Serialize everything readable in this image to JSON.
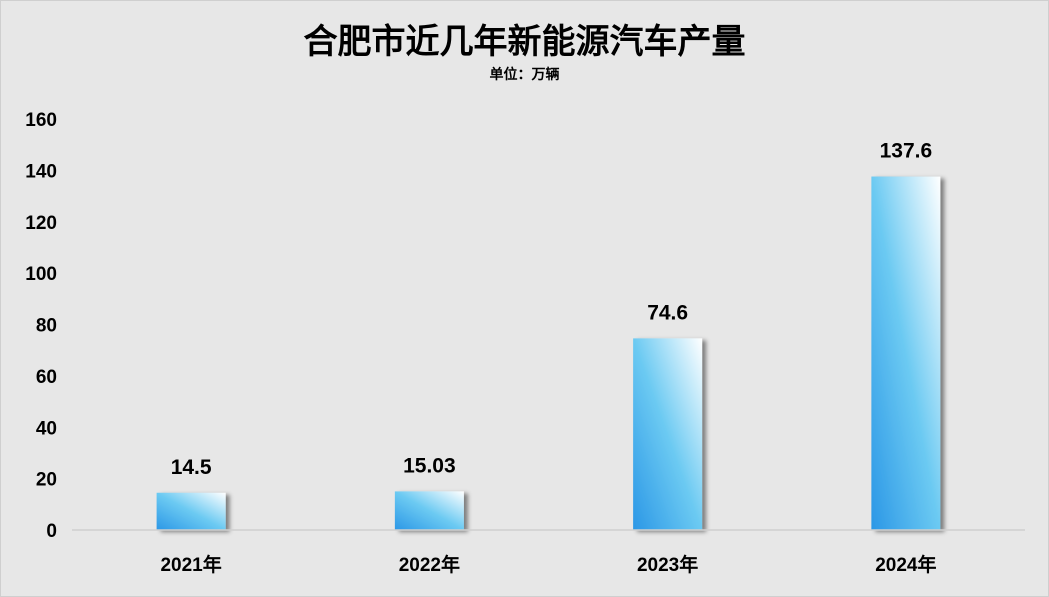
{
  "chart_data": {
    "type": "bar",
    "title": "合肥市近几年新能源汽车产量",
    "subtitle": "单位：万辆",
    "categories": [
      "2021年",
      "2022年",
      "2023年",
      "2024年"
    ],
    "values": [
      14.5,
      15.03,
      74.6,
      137.6
    ],
    "data_labels": [
      "14.5",
      "15.03",
      "74.6",
      "137.6"
    ],
    "ylim": [
      0,
      160
    ],
    "yticks": [
      "0",
      "20",
      "40",
      "60",
      "80",
      "100",
      "120",
      "140",
      "160"
    ],
    "grid": false,
    "legend": "none",
    "bar_gradient": [
      "#2b97e6",
      "#6ccaf2",
      "#ffffff"
    ]
  }
}
